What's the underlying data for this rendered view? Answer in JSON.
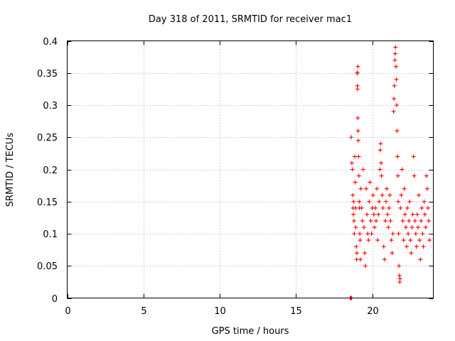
{
  "chart_data": {
    "type": "scatter",
    "title": "Day 318 of 2011, SRMTID for receiver mac1",
    "xlabel": "GPS time / hours",
    "ylabel": "SRMTID / TECUs",
    "xlim": [
      0,
      24
    ],
    "ylim": [
      0,
      0.4
    ],
    "xticks": [
      0,
      5,
      10,
      15,
      20
    ],
    "xtick_labels": [
      "0",
      "5",
      "10",
      "15",
      "20"
    ],
    "yticks": [
      0,
      0.05,
      0.1,
      0.15,
      0.2,
      0.25,
      0.3,
      0.35,
      0.4
    ],
    "ytick_labels": [
      "0",
      "0.05",
      "0.1",
      "0.15",
      "0.2",
      "0.25",
      "0.3",
      "0.35",
      "0.4"
    ],
    "grid": true,
    "marker": "plus",
    "color": "#ff0000",
    "series": [
      {
        "points": [
          [
            18.55,
            0.0
          ],
          [
            18.6,
            0.0
          ],
          [
            18.65,
            0.0
          ],
          [
            18.62,
            0.25
          ],
          [
            18.66,
            0.21
          ],
          [
            18.7,
            0.2
          ],
          [
            18.72,
            0.16
          ],
          [
            18.74,
            0.14
          ],
          [
            18.76,
            0.13
          ],
          [
            18.78,
            0.15
          ],
          [
            18.8,
            0.12
          ],
          [
            18.82,
            0.1
          ],
          [
            18.85,
            0.22
          ],
          [
            18.88,
            0.18
          ],
          [
            18.9,
            0.14
          ],
          [
            18.92,
            0.11
          ],
          [
            18.95,
            0.08
          ],
          [
            18.97,
            0.06
          ],
          [
            18.99,
            0.07
          ],
          [
            19.0,
            0.35
          ],
          [
            19.02,
            0.33
          ],
          [
            19.04,
            0.35
          ],
          [
            19.06,
            0.36
          ],
          [
            19.03,
            0.325
          ],
          [
            19.05,
            0.28
          ],
          [
            19.07,
            0.26
          ],
          [
            19.08,
            0.245
          ],
          [
            19.1,
            0.22
          ],
          [
            19.12,
            0.19
          ],
          [
            19.14,
            0.15
          ],
          [
            19.16,
            0.14
          ],
          [
            19.18,
            0.1
          ],
          [
            19.2,
            0.09
          ],
          [
            19.22,
            0.06
          ],
          [
            19.25,
            0.17
          ],
          [
            19.3,
            0.14
          ],
          [
            19.35,
            0.12
          ],
          [
            19.4,
            0.2
          ],
          [
            19.45,
            0.11
          ],
          [
            19.5,
            0.07
          ],
          [
            19.55,
            0.05
          ],
          [
            19.6,
            0.17
          ],
          [
            19.65,
            0.13
          ],
          [
            19.7,
            0.1
          ],
          [
            19.75,
            0.09
          ],
          [
            19.8,
            0.15
          ],
          [
            19.85,
            0.18
          ],
          [
            19.9,
            0.12
          ],
          [
            19.95,
            0.1
          ],
          [
            20.0,
            0.14
          ],
          [
            20.05,
            0.16
          ],
          [
            20.1,
            0.13
          ],
          [
            20.15,
            0.11
          ],
          [
            20.2,
            0.14
          ],
          [
            20.25,
            0.12
          ],
          [
            20.3,
            0.17
          ],
          [
            20.35,
            0.09
          ],
          [
            20.4,
            0.13
          ],
          [
            20.45,
            0.15
          ],
          [
            20.5,
            0.2
          ],
          [
            20.52,
            0.23
          ],
          [
            20.55,
            0.24
          ],
          [
            20.58,
            0.21
          ],
          [
            20.6,
            0.19
          ],
          [
            20.65,
            0.16
          ],
          [
            20.7,
            0.14
          ],
          [
            20.75,
            0.08
          ],
          [
            20.8,
            0.06
          ],
          [
            20.85,
            0.12
          ],
          [
            20.9,
            0.15
          ],
          [
            20.95,
            0.17
          ],
          [
            21.0,
            0.13
          ],
          [
            21.05,
            0.11
          ],
          [
            21.1,
            0.14
          ],
          [
            21.15,
            0.16
          ],
          [
            21.2,
            0.12
          ],
          [
            21.25,
            0.09
          ],
          [
            21.3,
            0.07
          ],
          [
            21.35,
            0.1
          ],
          [
            21.4,
            0.29
          ],
          [
            21.42,
            0.31
          ],
          [
            21.45,
            0.33
          ],
          [
            21.48,
            0.37
          ],
          [
            21.5,
            0.38
          ],
          [
            21.52,
            0.39
          ],
          [
            21.55,
            0.36
          ],
          [
            21.58,
            0.34
          ],
          [
            21.6,
            0.3
          ],
          [
            21.62,
            0.26
          ],
          [
            21.65,
            0.22
          ],
          [
            21.68,
            0.19
          ],
          [
            21.7,
            0.15
          ],
          [
            21.72,
            0.1
          ],
          [
            21.75,
            0.05
          ],
          [
            21.78,
            0.035
          ],
          [
            21.8,
            0.025
          ],
          [
            21.82,
            0.03
          ],
          [
            21.85,
            0.14
          ],
          [
            21.9,
            0.16
          ],
          [
            21.95,
            0.2
          ],
          [
            22.0,
            0.12
          ],
          [
            22.05,
            0.09
          ],
          [
            22.1,
            0.17
          ],
          [
            22.15,
            0.13
          ],
          [
            22.2,
            0.11
          ],
          [
            22.25,
            0.08
          ],
          [
            22.3,
            0.14
          ],
          [
            22.35,
            0.1
          ],
          [
            22.4,
            0.12
          ],
          [
            22.45,
            0.15
          ],
          [
            22.5,
            0.09
          ],
          [
            22.55,
            0.07
          ],
          [
            22.6,
            0.11
          ],
          [
            22.65,
            0.13
          ],
          [
            22.7,
            0.22
          ],
          [
            22.75,
            0.19
          ],
          [
            22.8,
            0.12
          ],
          [
            22.85,
            0.1
          ],
          [
            22.9,
            0.08
          ],
          [
            22.95,
            0.13
          ],
          [
            23.0,
            0.11
          ],
          [
            23.05,
            0.16
          ],
          [
            23.1,
            0.09
          ],
          [
            23.15,
            0.06
          ],
          [
            23.2,
            0.12
          ],
          [
            23.25,
            0.14
          ],
          [
            23.3,
            0.1
          ],
          [
            23.35,
            0.08
          ],
          [
            23.4,
            0.15
          ],
          [
            23.45,
            0.13
          ],
          [
            23.5,
            0.11
          ],
          [
            23.55,
            0.19
          ],
          [
            23.6,
            0.17
          ],
          [
            23.65,
            0.14
          ],
          [
            23.7,
            0.12
          ],
          [
            23.75,
            0.09
          ]
        ]
      }
    ]
  }
}
